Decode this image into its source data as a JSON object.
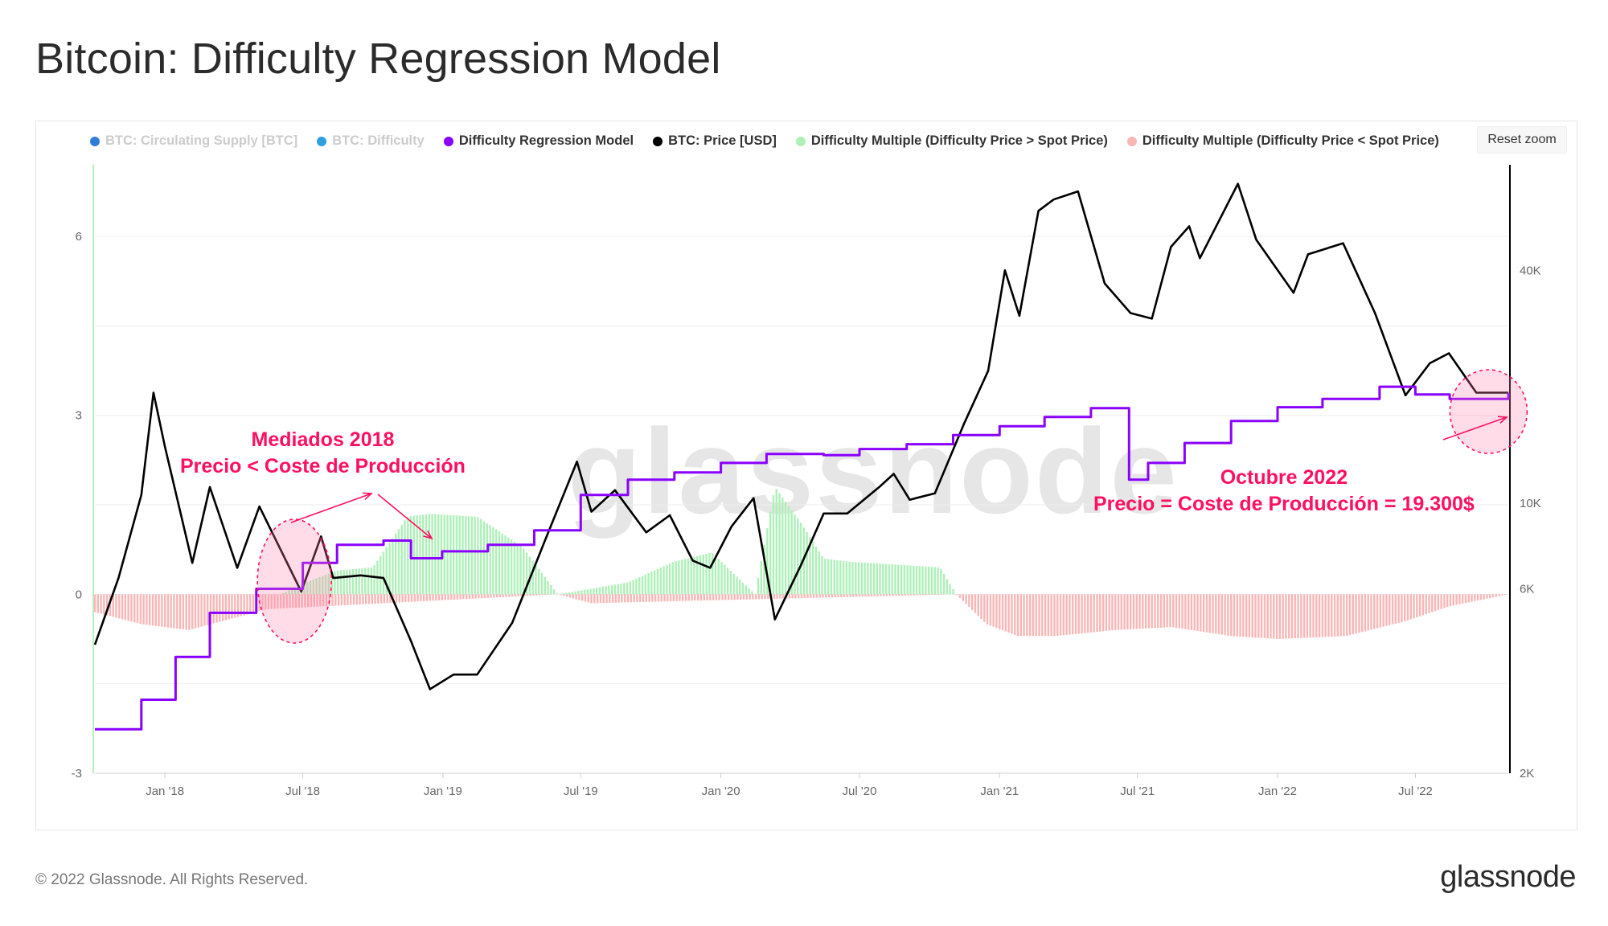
{
  "page": {
    "title": "Bitcoin: Difficulty Regression Model",
    "footer_copyright": "© 2022 Glassnode. All Rights Reserved.",
    "footer_logo": "glassnode",
    "watermark": "glassnode",
    "reset_zoom_label": "Reset zoom"
  },
  "legend": [
    {
      "label": "BTC: Circulating Supply [BTC]",
      "color": "#2f7ed8",
      "hidden": true
    },
    {
      "label": "BTC: Difficulty",
      "color": "#2f9fe0",
      "hidden": true
    },
    {
      "label": "Difficulty Regression Model",
      "color": "#8a00ff",
      "hidden": false
    },
    {
      "label": "BTC: Price [USD]",
      "color": "#000000",
      "hidden": false
    },
    {
      "label": "Difficulty Multiple (Difficulty Price > Spot Price)",
      "color": "#aef0b8",
      "hidden": false
    },
    {
      "label": "Difficulty Multiple (Difficulty Price < Spot Price)",
      "color": "#f8b6b6",
      "hidden": false
    }
  ],
  "annotations": {
    "mid2018": {
      "line1": "Mediados 2018",
      "line2": "Precio < Coste de Producción"
    },
    "oct2022": {
      "line1": "Octubre 2022",
      "line2": "Precio = Coste de Producción = 19.300$"
    }
  },
  "chart_data": {
    "type": "line",
    "title": "Bitcoin: Difficulty Regression Model",
    "x_ticks": [
      "Jan '18",
      "Jul '18",
      "Jan '19",
      "Jul '19",
      "Jan '20",
      "Jul '20",
      "Jan '21",
      "Jul '21",
      "Jan '22",
      "Jul '22"
    ],
    "x_range": [
      "2017-10-01",
      "2022-10-31"
    ],
    "y_left": {
      "ticks": [
        "-3",
        "0",
        "3",
        "6"
      ],
      "range": [
        -3,
        7.2
      ],
      "label": ""
    },
    "y_right": {
      "ticks": [
        "2K",
        "6K",
        "10K",
        "40K"
      ],
      "range": [
        2000,
        75000
      ],
      "scale": "log",
      "label": ""
    },
    "series": [
      {
        "name": "BTC: Price [USD]",
        "axis": "right",
        "color": "#000000",
        "x": [
          "2017-10-01",
          "2017-11-01",
          "2017-12-01",
          "2017-12-17",
          "2018-01-01",
          "2018-02-06",
          "2018-03-01",
          "2018-04-06",
          "2018-05-05",
          "2018-06-29",
          "2018-07-25",
          "2018-08-10",
          "2018-09-15",
          "2018-10-15",
          "2018-11-20",
          "2018-12-15",
          "2019-01-15",
          "2019-02-15",
          "2019-04-02",
          "2019-05-15",
          "2019-06-26",
          "2019-07-15",
          "2019-08-15",
          "2019-09-25",
          "2019-10-26",
          "2019-11-25",
          "2019-12-18",
          "2020-01-15",
          "2020-02-13",
          "2020-03-12",
          "2020-04-15",
          "2020-05-15",
          "2020-06-15",
          "2020-07-27",
          "2020-08-15",
          "2020-09-05",
          "2020-10-08",
          "2020-11-15",
          "2020-12-17",
          "2021-01-08",
          "2021-01-27",
          "2021-02-21",
          "2021-03-13",
          "2021-04-14",
          "2021-05-19",
          "2021-06-22",
          "2021-07-20",
          "2021-08-14",
          "2021-09-07",
          "2021-09-21",
          "2021-11-10",
          "2021-12-04",
          "2022-01-22",
          "2022-02-10",
          "2022-03-28",
          "2022-05-09",
          "2022-06-18",
          "2022-07-20",
          "2022-08-14",
          "2022-09-19",
          "2022-10-31"
        ],
        "values": [
          4300,
          6400,
          10500,
          19300,
          14000,
          7000,
          11000,
          6800,
          9800,
          5900,
          8200,
          6400,
          6500,
          6400,
          4400,
          3300,
          3600,
          3600,
          4900,
          8000,
          12800,
          9500,
          10800,
          8400,
          9300,
          7100,
          6800,
          8700,
          10300,
          5000,
          6900,
          9400,
          9400,
          11000,
          11900,
          10200,
          10600,
          16000,
          22000,
          40000,
          30500,
          57000,
          61000,
          64000,
          37000,
          31000,
          30000,
          46000,
          52000,
          43000,
          67000,
          48000,
          35000,
          44000,
          47000,
          31000,
          19000,
          23000,
          24400,
          19300,
          19300
        ]
      },
      {
        "name": "Difficulty Regression Model",
        "axis": "right",
        "color": "#8a00ff",
        "x": [
          "2017-10-01",
          "2017-12-01",
          "2018-01-15",
          "2018-03-01",
          "2018-05-01",
          "2018-07-01",
          "2018-08-15",
          "2018-10-15",
          "2018-11-20",
          "2018-12-31",
          "2019-03-01",
          "2019-05-01",
          "2019-07-01",
          "2019-09-01",
          "2019-11-01",
          "2020-01-01",
          "2020-03-01",
          "2020-05-15",
          "2020-07-01",
          "2020-09-01",
          "2020-11-01",
          "2021-01-01",
          "2021-03-01",
          "2021-05-01",
          "2021-06-20",
          "2021-07-15",
          "2021-09-01",
          "2021-11-01",
          "2022-01-01",
          "2022-03-01",
          "2022-05-15",
          "2022-07-01",
          "2022-08-15",
          "2022-10-31"
        ],
        "values": [
          2600,
          3100,
          4000,
          5200,
          6000,
          7000,
          7800,
          8000,
          7200,
          7500,
          7800,
          8500,
          10500,
          11500,
          12000,
          12700,
          13400,
          13300,
          13800,
          14200,
          15000,
          15800,
          16700,
          17600,
          11500,
          12700,
          14300,
          16300,
          17700,
          18600,
          20000,
          19100,
          18600,
          19300
        ]
      },
      {
        "name": "Difficulty Multiple (Difficulty Price > Spot Price)",
        "axis": "left",
        "color": "#aef0b8",
        "x": [
          "2018-06-01",
          "2018-07-15",
          "2018-08-15",
          "2018-10-01",
          "2018-11-15",
          "2018-12-15",
          "2019-02-15",
          "2019-04-15",
          "2019-06-01",
          "2019-09-01",
          "2019-11-01",
          "2019-12-20",
          "2020-02-15",
          "2020-03-12",
          "2020-04-15",
          "2020-05-15",
          "2020-06-15",
          "2020-08-15",
          "2020-10-15",
          "2020-11-05"
        ],
        "values": [
          0,
          0.25,
          0.4,
          0.45,
          1.3,
          1.35,
          1.3,
          0.8,
          0,
          0.2,
          0.55,
          0.7,
          0,
          1.8,
          1.2,
          0.6,
          0.55,
          0.5,
          0.45,
          0
        ]
      },
      {
        "name": "Difficulty Multiple (Difficulty Price < Spot Price)",
        "axis": "left",
        "color": "#f8b6b6",
        "x": [
          "2017-10-01",
          "2017-12-01",
          "2018-02-01",
          "2018-04-01",
          "2018-05-15",
          "2019-06-01",
          "2019-07-15",
          "2020-11-05",
          "2020-12-15",
          "2021-01-25",
          "2021-03-15",
          "2021-06-01",
          "2021-08-15",
          "2021-11-01",
          "2022-01-01",
          "2022-04-01",
          "2022-06-18",
          "2022-08-15",
          "2022-10-31"
        ],
        "values": [
          -0.3,
          -0.5,
          -0.6,
          -0.4,
          -0.25,
          0,
          -0.15,
          0,
          -0.5,
          -0.7,
          -0.7,
          -0.6,
          -0.55,
          -0.7,
          -0.75,
          -0.7,
          -0.45,
          -0.2,
          0
        ]
      }
    ]
  }
}
